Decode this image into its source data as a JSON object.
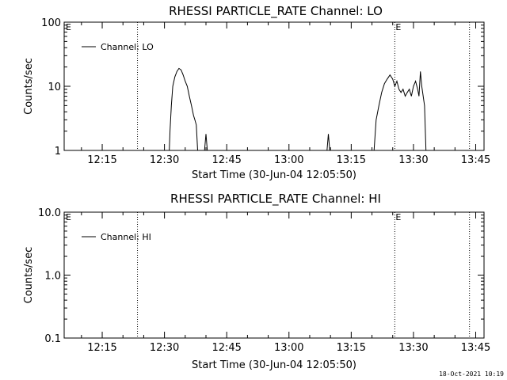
{
  "footer": {
    "timestamp": "18-Oct-2021 10:19"
  },
  "chart_data": [
    {
      "type": "line",
      "title": "RHESSI PARTICLE_RATE Channel: LO",
      "xlabel": "Start Time (30-Jun-04 12:05:50)",
      "ylabel": "Counts/sec",
      "yscale": "log",
      "ylim": [
        1,
        100
      ],
      "xlim": [
        "12:05:50",
        "13:47:00"
      ],
      "x_ticks": [
        "12:15",
        "12:30",
        "12:45",
        "13:00",
        "13:15",
        "13:30",
        "13:45"
      ],
      "y_ticks": [
        "1",
        "10",
        "100"
      ],
      "markers": [
        {
          "time": "12:23:30",
          "label": ""
        },
        {
          "time": "13:25:30",
          "label": "E"
        },
        {
          "time": "13:43:30",
          "label": ""
        }
      ],
      "corner_label": "E",
      "legend": {
        "position": "top-left",
        "entries": [
          "Channel: LO"
        ]
      },
      "series": [
        {
          "name": "Channel: LO",
          "segments": [
            [
              [
                "12:31:10",
                1
              ],
              [
                "12:31:20",
                2
              ],
              [
                "12:31:40",
                5
              ],
              [
                "12:32:00",
                10
              ],
              [
                "12:32:30",
                14
              ],
              [
                "12:33:00",
                17
              ],
              [
                "12:33:30",
                19
              ],
              [
                "12:34:00",
                18
              ],
              [
                "12:34:30",
                15
              ],
              [
                "12:35:00",
                12
              ],
              [
                "12:35:30",
                10
              ],
              [
                "12:36:00",
                7
              ],
              [
                "12:36:30",
                5
              ],
              [
                "12:37:00",
                3.5
              ],
              [
                "12:37:20",
                3
              ],
              [
                "12:37:40",
                2.5
              ],
              [
                "12:38:00",
                1
              ]
            ],
            [
              [
                "12:39:40",
                1
              ],
              [
                "12:40:00",
                1.8
              ],
              [
                "12:40:20",
                1
              ]
            ],
            [
              [
                "13:09:10",
                1
              ],
              [
                "13:09:30",
                1.8
              ],
              [
                "13:09:50",
                1
              ]
            ],
            [
              [
                "13:20:30",
                1
              ],
              [
                "13:21:00",
                3
              ],
              [
                "13:21:40",
                5
              ],
              [
                "13:22:20",
                8
              ],
              [
                "13:23:00",
                11
              ],
              [
                "13:23:40",
                13
              ],
              [
                "13:24:20",
                15
              ],
              [
                "13:25:00",
                13
              ],
              [
                "13:25:30",
                10
              ],
              [
                "13:26:00",
                12
              ],
              [
                "13:26:30",
                9
              ],
              [
                "13:27:00",
                8
              ],
              [
                "13:27:30",
                9
              ],
              [
                "13:28:00",
                7
              ],
              [
                "13:28:30",
                8
              ],
              [
                "13:29:00",
                9
              ],
              [
                "13:29:30",
                7
              ],
              [
                "13:30:00",
                10
              ],
              [
                "13:30:30",
                12
              ],
              [
                "13:31:00",
                9
              ],
              [
                "13:31:20",
                7
              ],
              [
                "13:31:40",
                17
              ],
              [
                "13:32:00",
                10
              ],
              [
                "13:32:40",
                5
              ],
              [
                "13:33:00",
                1
              ]
            ]
          ]
        }
      ]
    },
    {
      "type": "line",
      "title": "RHESSI PARTICLE_RATE Channel: HI",
      "xlabel": "Start Time (30-Jun-04 12:05:50)",
      "ylabel": "Counts/sec",
      "yscale": "log",
      "ylim": [
        0.1,
        10
      ],
      "xlim": [
        "12:05:50",
        "13:47:00"
      ],
      "x_ticks": [
        "12:15",
        "12:30",
        "12:45",
        "13:00",
        "13:15",
        "13:30",
        "13:45"
      ],
      "y_ticks": [
        "0.1",
        "1.0",
        "10.0"
      ],
      "markers": [
        {
          "time": "12:23:30",
          "label": ""
        },
        {
          "time": "13:25:30",
          "label": "E"
        },
        {
          "time": "13:43:30",
          "label": ""
        }
      ],
      "corner_label": "E",
      "legend": {
        "position": "top-left",
        "entries": [
          "Channel: HI"
        ]
      },
      "series": [
        {
          "name": "Channel: HI",
          "segments": []
        }
      ]
    }
  ]
}
